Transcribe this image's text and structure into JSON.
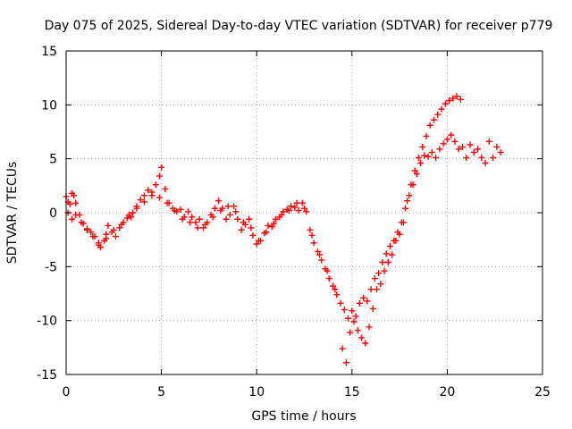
{
  "chart_data": {
    "type": "scatter",
    "title": "Day 075 of 2025, Sidereal Day-to-day VTEC variation (SDTVAR) for receiver p779",
    "xlabel": "GPS time / hours",
    "ylabel": "SDTVAR / TECUs",
    "xlim": [
      0,
      25
    ],
    "ylim": [
      -15,
      15
    ],
    "xticks": [
      0,
      5,
      10,
      15,
      20,
      25
    ],
    "yticks": [
      -15,
      -10,
      -5,
      0,
      5,
      10,
      15
    ],
    "x_tick_labels": [
      "0",
      "5",
      "10",
      "15",
      "20",
      "25"
    ],
    "y_tick_labels": [
      "-15",
      "-10",
      "-5",
      "0",
      "5",
      "10",
      "15"
    ],
    "grid": true,
    "legend": "none",
    "marker": "plus",
    "color": "#ff0000",
    "series": [
      {
        "x": [
          0.0,
          0.1,
          0.2,
          0.3,
          0.4,
          0.5,
          0.7,
          0.9,
          1.1,
          1.3,
          1.5,
          1.7,
          1.8,
          2.0,
          2.1,
          2.2,
          2.4,
          2.6,
          2.8,
          3.0,
          3.2,
          3.4,
          3.5,
          3.7,
          3.9,
          4.1,
          4.3,
          4.5,
          4.7,
          4.9,
          5.0,
          5.2,
          5.4,
          5.6,
          5.8,
          6.0,
          6.2,
          6.4,
          6.6,
          6.8,
          7.0,
          7.2,
          7.4,
          7.6,
          7.8,
          8.0,
          8.2,
          8.4,
          8.6,
          8.8,
          9.0,
          9.2,
          9.4,
          9.6,
          9.8,
          10.0,
          10.2,
          10.4,
          10.6,
          10.8,
          11.0,
          11.2,
          11.4,
          11.6,
          11.8,
          12.0,
          12.2,
          12.4,
          12.6,
          12.8,
          13.0,
          13.2,
          13.4,
          13.6,
          13.8,
          14.0,
          14.2,
          14.4,
          14.6,
          14.8,
          15.0,
          15.2,
          15.4,
          15.6,
          15.8,
          16.0,
          16.2,
          16.4,
          16.6,
          16.8,
          17.0,
          17.2,
          17.4,
          17.6,
          17.8,
          18.0,
          18.2,
          18.4,
          18.6,
          18.8,
          19.0,
          19.2,
          19.4,
          19.6,
          19.8,
          20.0,
          20.2,
          20.4,
          20.6,
          20.8,
          21.0,
          21.2,
          21.4,
          21.6,
          21.8,
          22.0,
          22.2,
          22.4,
          22.6,
          22.8
        ],
        "y": [
          1.5,
          1.0,
          0.8,
          1.8,
          1.6,
          0.9,
          -0.2,
          -1.0,
          -1.5,
          -1.8,
          -2.2,
          -2.8,
          -3.2,
          -2.6,
          -2.0,
          -1.2,
          -1.8,
          -2.2,
          -1.4,
          -0.9,
          -0.5,
          -0.4,
          0.0,
          0.6,
          1.2,
          1.6,
          2.1,
          1.9,
          2.6,
          3.4,
          4.2,
          2.2,
          0.9,
          0.4,
          0.1,
          0.3,
          -0.4,
          0.1,
          -0.4,
          -0.9,
          -0.6,
          -1.4,
          -0.9,
          -0.2,
          0.4,
          1.1,
          0.4,
          -0.6,
          -0.2,
          0.6,
          -0.6,
          -1.6,
          -1.1,
          -0.6,
          -2.1,
          -2.9,
          -2.6,
          -1.9,
          -1.2,
          -1.3,
          -0.6,
          -0.4,
          0.1,
          0.3,
          0.6,
          0.5,
          0.2,
          0.9,
          0.1,
          -1.6,
          -2.8,
          -3.6,
          -4.4,
          -5.2,
          -6.1,
          -6.8,
          -7.6,
          -8.4,
          -9.0,
          -9.8,
          -9.1,
          -9.6,
          -8.4,
          -7.9,
          -8.2,
          -7.1,
          -6.1,
          -5.6,
          -4.6,
          -3.8,
          -3.1,
          -2.6,
          -1.8,
          -0.9,
          0.4,
          1.6,
          2.6,
          3.6,
          4.6,
          5.3,
          5.2,
          5.6,
          5.1,
          5.9,
          6.4,
          6.8,
          7.2,
          6.6,
          5.9,
          6.1,
          5.1,
          6.3,
          5.6,
          5.9,
          5.1,
          4.6,
          6.6,
          5.1,
          6.1,
          5.6
        ]
      },
      {
        "x": [
          0.1,
          0.3,
          0.5,
          0.8,
          1.1,
          1.4,
          1.7,
          2.1,
          2.5,
          2.9,
          3.3,
          3.7,
          4.1,
          4.5,
          4.9,
          5.3,
          5.7,
          6.1,
          6.5,
          6.9,
          7.3,
          7.7,
          8.1,
          8.5,
          8.9,
          9.3,
          9.7,
          10.1,
          10.5,
          10.9,
          11.3,
          11.7,
          12.1,
          12.5,
          12.9,
          13.3,
          13.7,
          14.1,
          14.5,
          14.7,
          14.9,
          15.1,
          15.3,
          15.5,
          15.7,
          15.9,
          16.1,
          16.3,
          16.5,
          16.7,
          16.9,
          17.1,
          17.3,
          17.5,
          17.7,
          17.9,
          18.1,
          18.3,
          18.5,
          18.7,
          18.9,
          19.1,
          19.3,
          19.5,
          19.7,
          19.9,
          20.1,
          20.3,
          20.5,
          20.7
        ],
        "y": [
          0.0,
          -0.6,
          -0.2,
          -0.9,
          -1.6,
          -2.2,
          -3.0,
          -2.4,
          -1.6,
          -1.1,
          -0.2,
          0.4,
          1.0,
          1.6,
          1.4,
          0.9,
          0.2,
          -0.6,
          -0.9,
          -1.4,
          -1.1,
          -0.4,
          0.2,
          0.6,
          0.1,
          -0.9,
          -1.4,
          -2.6,
          -1.8,
          -1.0,
          -0.2,
          0.2,
          0.9,
          0.4,
          -2.1,
          -3.9,
          -5.4,
          -7.1,
          -12.6,
          -13.9,
          -11.1,
          -10.1,
          -10.9,
          -11.6,
          -12.1,
          -10.6,
          -8.9,
          -7.1,
          -6.6,
          -5.4,
          -4.6,
          -3.9,
          -2.6,
          -2.0,
          -0.9,
          1.1,
          2.6,
          3.9,
          5.1,
          6.1,
          7.1,
          8.1,
          8.6,
          9.1,
          9.6,
          10.1,
          10.4,
          10.6,
          10.8,
          10.5
        ]
      }
    ]
  }
}
